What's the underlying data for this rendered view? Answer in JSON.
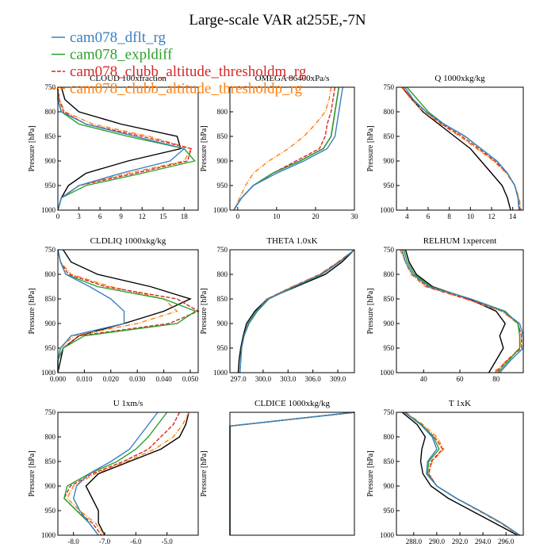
{
  "title": "Large-scale VAR at255E,-7N",
  "legend": [
    {
      "name": "cam078_dflt_rg",
      "color": "#3a7fc1"
    },
    {
      "name": "cam078_expldiff",
      "color": "#2ca02c"
    },
    {
      "name": "cam078_clubb_altitude_thresholdm_rg",
      "color": "#d62728",
      "dash": "5,2"
    },
    {
      "name": "cam078_clubb_altitude_thresholdp_rg",
      "color": "#ff7f0e",
      "dash": "6,2,1,2"
    }
  ],
  "reference_color": "#000000",
  "chart_data": [
    {
      "type": "line",
      "title": "CLOUD 100xfraction",
      "ylabel": "Pressure [hPa]",
      "y": [
        750,
        775,
        800,
        825,
        850,
        875,
        900,
        925,
        950,
        975,
        1000
      ],
      "xlim": [
        0,
        20
      ],
      "xticks": [
        0,
        3,
        6,
        9,
        12,
        15,
        18
      ],
      "ylim": [
        1000,
        750
      ],
      "yticks": [
        750,
        800,
        850,
        900,
        950,
        1000
      ],
      "series": [
        {
          "values": [
            0,
            0,
            0.5,
            4,
            11,
            18,
            16,
            9,
            3,
            0.5,
            0
          ]
        },
        {
          "values": [
            0,
            0,
            0.5,
            3,
            10,
            18,
            19.5,
            12,
            4,
            0.5,
            0
          ]
        },
        {
          "values": [
            0,
            0.2,
            0.8,
            4,
            12,
            19,
            18.5,
            11,
            3,
            0.5,
            0
          ]
        },
        {
          "values": [
            0,
            0.2,
            1,
            5,
            13,
            19,
            18,
            10,
            3,
            0.5,
            0
          ]
        },
        {
          "values": [
            0.5,
            1,
            3,
            9,
            17,
            17.5,
            10,
            4,
            1.5,
            0.5,
            0
          ]
        }
      ]
    },
    {
      "type": "line",
      "title": "OMEGA 86400xPa/s",
      "ylabel": "Pressure [hPa]",
      "y": [
        750,
        775,
        800,
        825,
        850,
        875,
        900,
        925,
        950,
        975,
        1000
      ],
      "xlim": [
        -2,
        30
      ],
      "xticks": [
        0,
        10,
        20,
        30
      ],
      "ylim": [
        1000,
        750
      ],
      "yticks": [
        800,
        850,
        900,
        950,
        1000
      ],
      "series": [
        {
          "values": [
            27,
            26.5,
            26,
            25.5,
            25,
            23,
            17,
            10,
            4,
            1,
            -1
          ]
        },
        {
          "values": [
            26,
            25.5,
            25,
            24.5,
            24,
            22,
            16,
            9,
            4,
            1,
            -1
          ]
        },
        {
          "values": [
            25,
            24.5,
            24,
            23,
            22.5,
            21,
            15,
            9,
            4,
            1,
            -1
          ]
        },
        {
          "values": [
            24,
            23.5,
            22.5,
            20,
            17,
            13,
            8,
            4,
            2,
            0.5,
            -1
          ]
        },
        {
          "values": [
            26,
            25.5,
            25,
            24.5,
            24,
            22,
            16,
            9,
            4,
            1,
            -1
          ]
        }
      ]
    },
    {
      "type": "line",
      "title": "Q 1000xkg/kg",
      "ylabel": "Pressure [hPa]",
      "y": [
        750,
        775,
        800,
        825,
        850,
        875,
        900,
        925,
        950,
        975,
        1000
      ],
      "xlim": [
        3,
        15
      ],
      "xticks": [
        4,
        6,
        8,
        10,
        12,
        14
      ],
      "ylim": [
        1000,
        750
      ],
      "yticks": [
        750,
        800,
        850,
        900,
        950,
        1000
      ],
      "series": [
        {
          "values": [
            3.8,
            4.6,
            5.8,
            7.5,
            9.5,
            11,
            12.5,
            13.5,
            14.2,
            14.5,
            14.6
          ]
        },
        {
          "values": [
            4,
            5,
            6,
            7.5,
            9.5,
            11,
            12.5,
            13.5,
            14.2,
            14.5,
            14.6
          ]
        },
        {
          "values": [
            3.6,
            4.5,
            5.8,
            7.3,
            9.2,
            10.8,
            12.3,
            13.5,
            14.2,
            14.5,
            14.7
          ]
        },
        {
          "values": [
            3.5,
            4.4,
            5.6,
            7.2,
            9,
            10.6,
            12.2,
            13.4,
            14.2,
            14.6,
            14.8
          ]
        },
        {
          "values": [
            3.5,
            4.5,
            5.5,
            7,
            8.5,
            10,
            11,
            12,
            13,
            13.5,
            13.8
          ]
        }
      ]
    },
    {
      "type": "line",
      "title": "CLDLIQ 1000xkg/kg",
      "ylabel": "Pressure [hPa]",
      "y": [
        750,
        775,
        800,
        825,
        850,
        875,
        900,
        925,
        950,
        975,
        1000
      ],
      "xlim": [
        0,
        0.053
      ],
      "xticks": [
        {
          "value": 0,
          "label": "0.000"
        },
        {
          "value": 0.01,
          "label": "0.010"
        },
        {
          "value": 0.02,
          "label": "0.020"
        },
        {
          "value": 0.03,
          "label": "0.030"
        },
        {
          "value": 0.04,
          "label": "0.040"
        },
        {
          "value": 0.05,
          "label": "0.050"
        }
      ],
      "ylim": [
        1000,
        750
      ],
      "yticks": [
        750,
        800,
        850,
        900,
        950,
        1000
      ],
      "series": [
        {
          "values": [
            0,
            0.001,
            0.003,
            0.012,
            0.02,
            0.025,
            0.025,
            0.005,
            0.001,
            0,
            0
          ]
        },
        {
          "values": [
            0,
            0.001,
            0.003,
            0.015,
            0.04,
            0.052,
            0.045,
            0.01,
            0.002,
            0,
            0
          ]
        },
        {
          "values": [
            0,
            0.001,
            0.004,
            0.018,
            0.045,
            0.053,
            0.042,
            0.008,
            0.002,
            0,
            0
          ]
        },
        {
          "values": [
            0,
            0.001,
            0.005,
            0.02,
            0.04,
            0.045,
            0.03,
            0.006,
            0.001,
            0,
            0
          ]
        },
        {
          "values": [
            0.002,
            0.005,
            0.015,
            0.035,
            0.05,
            0.04,
            0.025,
            0.008,
            0.002,
            0.001,
            0
          ]
        }
      ]
    },
    {
      "type": "line",
      "title": "THETA 1.0xK",
      "ylabel": "Pressure [hPa]",
      "y": [
        750,
        775,
        800,
        825,
        850,
        875,
        900,
        925,
        950,
        975,
        1000
      ],
      "xlim": [
        296,
        311
      ],
      "xticks": [
        {
          "value": 297,
          "label": "297.0"
        },
        {
          "value": 300,
          "label": "300.0"
        },
        {
          "value": 303,
          "label": "303.0"
        },
        {
          "value": 306,
          "label": "306.0"
        },
        {
          "value": 309,
          "label": "309.0"
        }
      ],
      "ylim": [
        1000,
        750
      ],
      "yticks": [
        750,
        800,
        850,
        900,
        950,
        1000
      ],
      "series": [
        {
          "values": [
            311,
            309.2,
            307,
            303.7,
            300.6,
            299.2,
            298.2,
            297.7,
            297.4,
            297.3,
            297.2
          ]
        },
        {
          "values": [
            311,
            309.2,
            307.1,
            303.8,
            300.7,
            299.3,
            298.3,
            297.7,
            297.4,
            297.3,
            297.2
          ]
        },
        {
          "values": [
            311,
            309.1,
            306.9,
            303.6,
            300.5,
            299.2,
            298.2,
            297.7,
            297.4,
            297.3,
            297.2
          ]
        },
        {
          "values": [
            311,
            309,
            306.8,
            303.5,
            300.5,
            299.2,
            298.2,
            297.7,
            297.4,
            297.3,
            297.2
          ]
        },
        {
          "values": [
            311,
            309.5,
            307.5,
            304,
            300.5,
            299,
            298,
            297.6,
            297.3,
            297.1,
            297
          ]
        }
      ]
    },
    {
      "type": "line",
      "title": "RELHUM 1xpercent",
      "ylabel": "Pressure [hPa]",
      "y": [
        750,
        775,
        800,
        825,
        850,
        875,
        900,
        925,
        950,
        975,
        1000
      ],
      "xlim": [
        25,
        95
      ],
      "xticks": [
        40,
        60,
        80
      ],
      "ylim": [
        1000,
        750
      ],
      "yticks": [
        750,
        800,
        850,
        900,
        950,
        1000
      ],
      "series": [
        {
          "values": [
            28,
            30,
            34,
            43,
            66,
            84,
            93,
            95,
            95,
            88,
            82
          ]
        },
        {
          "values": [
            29,
            31,
            35,
            44,
            66,
            85,
            92,
            93,
            93,
            87,
            81
          ]
        },
        {
          "values": [
            28,
            30,
            34,
            42,
            64,
            84,
            92,
            94,
            94,
            86,
            80
          ]
        },
        {
          "values": [
            27,
            30,
            33,
            41,
            63,
            83,
            92,
            94,
            93,
            86,
            79
          ]
        },
        {
          "values": [
            30,
            32,
            36,
            45,
            65,
            80,
            85,
            82,
            84,
            80,
            76
          ]
        }
      ]
    },
    {
      "type": "line",
      "title": "U 1xm/s",
      "ylabel": "Pressure [hPa]",
      "y": [
        750,
        775,
        800,
        825,
        850,
        875,
        900,
        925,
        950,
        975,
        1000
      ],
      "xlim": [
        -8.5,
        -4
      ],
      "xticks": [
        {
          "value": -8,
          "label": "-8.0"
        },
        {
          "value": -7,
          "label": "-7.0"
        },
        {
          "value": -6,
          "label": "-6.0"
        },
        {
          "value": -5,
          "label": "-5.0"
        }
      ],
      "ylim": [
        1000,
        750
      ],
      "yticks": [
        750,
        800,
        850,
        900,
        950,
        1000
      ],
      "series": [
        {
          "values": [
            -5.3,
            -5.6,
            -5.9,
            -6.2,
            -6.8,
            -7.5,
            -7.9,
            -8.0,
            -7.8,
            -7.5,
            -7.2
          ]
        },
        {
          "values": [
            -5.0,
            -5.3,
            -5.6,
            -6.0,
            -6.6,
            -7.5,
            -8.2,
            -8.3,
            -7.9,
            -7.5,
            -7.2
          ]
        },
        {
          "values": [
            -4.6,
            -4.8,
            -5.2,
            -5.6,
            -6.4,
            -7.4,
            -8.1,
            -8.3,
            -7.9,
            -7.4,
            -7.1
          ]
        },
        {
          "values": [
            -4.3,
            -4.5,
            -4.8,
            -5.4,
            -6.3,
            -7.3,
            -8.0,
            -8.2,
            -7.8,
            -7.3,
            -7.0
          ]
        },
        {
          "values": [
            -4.3,
            -4.4,
            -4.6,
            -5.2,
            -6.2,
            -7.2,
            -7.6,
            -7.4,
            -7.2,
            -7.2,
            -7.0
          ]
        }
      ]
    },
    {
      "type": "line",
      "title": "CLDICE 1000xkg/kg",
      "ylabel": "Pressure [hPa]",
      "y": [
        750,
        778,
        1000
      ],
      "xlim": [
        0,
        1
      ],
      "ylim": [
        1000,
        750
      ],
      "series": [
        {
          "values": [
            1,
            0,
            0
          ]
        },
        {
          "values": [
            1,
            0,
            0
          ]
        },
        {
          "values": [
            1,
            0,
            0
          ]
        },
        {
          "values": [
            1,
            0,
            0
          ]
        },
        {
          "values": [
            1,
            0,
            0
          ]
        }
      ]
    },
    {
      "type": "line",
      "title": "T 1xK",
      "ylabel": "Pressure [hPa]",
      "y": [
        750,
        775,
        800,
        825,
        850,
        875,
        900,
        925,
        950,
        975,
        1000
      ],
      "xlim": [
        286.5,
        297.5
      ],
      "xticks": [
        {
          "value": 288,
          "label": "288.0"
        },
        {
          "value": 290,
          "label": "290.0"
        },
        {
          "value": 292,
          "label": "292.0"
        },
        {
          "value": 294,
          "label": "294.0"
        },
        {
          "value": 296,
          "label": "296.0"
        }
      ],
      "ylim": [
        1000,
        750
      ],
      "yticks": [
        750,
        800,
        850,
        900,
        950,
        1000
      ],
      "series": [
        {
          "values": [
            287.2,
            288.6,
            289.6,
            290,
            289.2,
            289.1,
            290,
            291.7,
            293.7,
            295.6,
            297.2
          ]
        },
        {
          "values": [
            287.2,
            288.7,
            289.7,
            290.2,
            289.3,
            289.2,
            290,
            291.7,
            293.7,
            295.6,
            297.2
          ]
        },
        {
          "values": [
            287.2,
            288.6,
            289.8,
            290.5,
            289.5,
            289.3,
            290,
            291.7,
            293.7,
            295.6,
            297.2
          ]
        },
        {
          "values": [
            287.3,
            288.8,
            290,
            290.6,
            289.6,
            289.3,
            290,
            291.7,
            293.6,
            295.5,
            297.1
          ]
        },
        {
          "values": [
            287,
            288.3,
            289,
            288.7,
            288.6,
            288.8,
            289.5,
            291,
            293,
            295,
            297
          ]
        }
      ]
    }
  ]
}
